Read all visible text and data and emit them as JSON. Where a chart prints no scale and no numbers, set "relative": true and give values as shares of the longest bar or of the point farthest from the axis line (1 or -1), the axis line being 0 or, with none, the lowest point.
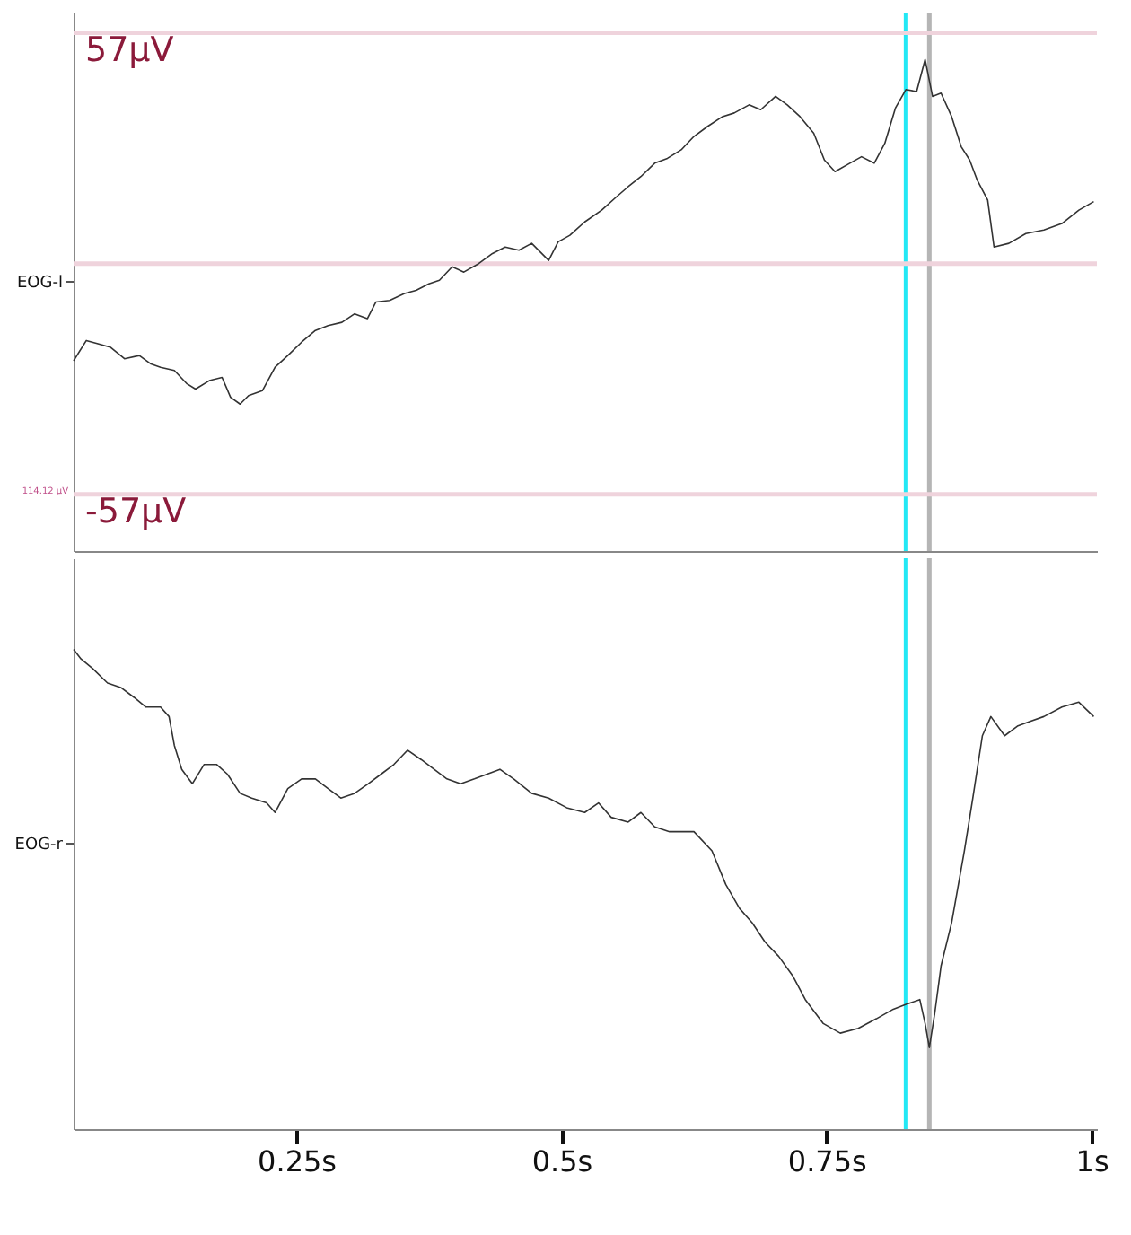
{
  "chart_data": [
    {
      "type": "line",
      "tick_labels": "y",
      "xlim": [
        0.04,
        1.005
      ],
      "ylim": [
        -71,
        62
      ],
      "yticks": [
        {
          "value": 57,
          "label": "57µV"
        },
        {
          "value": -57,
          "label": "-57µV"
        }
      ],
      "grid": false,
      "ref_lines": [
        {
          "axis": "y",
          "value": 57,
          "color": "#efd3dc"
        },
        {
          "axis": "y",
          "value": 0,
          "color": "#efd3dc"
        },
        {
          "axis": "y",
          "value": -57,
          "color": "#efd3dc"
        },
        {
          "axis": "x",
          "value": 0.825,
          "color": "#22e8f5"
        },
        {
          "axis": "x",
          "value": 0.847,
          "color": "#b5b5b5"
        }
      ],
      "annotations": [
        "EOG-l",
        "114.12 µV"
      ],
      "series": [
        {
          "color": "#333333",
          "x": [
            0.04,
            0.052,
            0.063,
            0.075,
            0.088,
            0.102,
            0.113,
            0.122,
            0.135,
            0.147,
            0.155,
            0.168,
            0.18,
            0.188,
            0.197,
            0.205,
            0.218,
            0.23,
            0.242,
            0.255,
            0.268,
            0.28,
            0.293,
            0.305,
            0.317,
            0.325,
            0.338,
            0.352,
            0.363,
            0.375,
            0.385,
            0.397,
            0.408,
            0.422,
            0.435,
            0.447,
            0.46,
            0.472,
            0.488,
            0.497,
            0.508,
            0.522,
            0.538,
            0.552,
            0.563,
            0.575,
            0.588,
            0.6,
            0.613,
            0.625,
            0.638,
            0.652,
            0.663,
            0.677,
            0.688,
            0.702,
            0.713,
            0.725,
            0.738,
            0.748,
            0.758,
            0.772,
            0.783,
            0.795,
            0.805,
            0.815,
            0.825,
            0.835,
            0.843,
            0.85,
            0.858,
            0.868,
            0.877,
            0.885,
            0.892,
            0.902,
            0.908,
            0.922,
            0.938,
            0.955,
            0.972,
            0.988,
            1.002
          ],
          "values": [
            -24,
            -19,
            -19.8,
            -20.7,
            -23.5,
            -22.7,
            -24.8,
            -25.6,
            -26.4,
            -29.7,
            -31,
            -28.9,
            -28.1,
            -33,
            -34.7,
            -32.6,
            -31.4,
            -25.6,
            -22.7,
            -19.4,
            -16.5,
            -15.3,
            -14.5,
            -12.4,
            -13.6,
            -9.5,
            -9.1,
            -7.4,
            -6.6,
            -5,
            -4.1,
            -0.8,
            -2.1,
            0,
            2.5,
            4.1,
            3.3,
            5,
            0.8,
            5.4,
            7,
            10.3,
            13.2,
            16.5,
            19,
            21.5,
            24.8,
            26,
            28.1,
            31.4,
            33.9,
            36.3,
            37.2,
            39.2,
            38,
            41.3,
            39.2,
            36.3,
            32.2,
            25.6,
            22.7,
            24.8,
            26.4,
            24.8,
            29.7,
            38.4,
            43,
            42.5,
            50.4,
            41.3,
            42.1,
            36.3,
            28.9,
            25.6,
            20.7,
            15.7,
            4.1,
            5,
            7.4,
            8.3,
            9.9,
            13.2,
            15.3
          ]
        }
      ]
    },
    {
      "type": "line",
      "relative": true,
      "tick_labels": "x",
      "xlim": [
        0.04,
        1.005
      ],
      "xticks": [
        {
          "value": 0.25,
          "label": "0.25s"
        },
        {
          "value": 0.5,
          "label": "0.5s"
        },
        {
          "value": 0.75,
          "label": "0.75s"
        },
        {
          "value": 1,
          "label": "1s"
        }
      ],
      "grid": false,
      "annotations": [
        "EOG-r"
      ],
      "ref_lines": [
        {
          "axis": "x",
          "value": 0.825,
          "color": "#22e8f5"
        },
        {
          "axis": "x",
          "value": 0.847,
          "color": "#b5b5b5"
        }
      ],
      "series": [
        {
          "color": "#333333",
          "x": [
            0.04,
            0.047,
            0.058,
            0.072,
            0.085,
            0.097,
            0.108,
            0.122,
            0.13,
            0.135,
            0.142,
            0.152,
            0.163,
            0.175,
            0.185,
            0.197,
            0.208,
            0.222,
            0.23,
            0.242,
            0.255,
            0.268,
            0.28,
            0.292,
            0.305,
            0.318,
            0.33,
            0.342,
            0.355,
            0.368,
            0.38,
            0.392,
            0.405,
            0.418,
            0.43,
            0.442,
            0.455,
            0.472,
            0.488,
            0.505,
            0.522,
            0.535,
            0.547,
            0.563,
            0.575,
            0.588,
            0.602,
            0.613,
            0.625,
            0.642,
            0.655,
            0.668,
            0.68,
            0.692,
            0.705,
            0.718,
            0.73,
            0.747,
            0.763,
            0.78,
            0.797,
            0.813,
            0.825,
            0.838,
            0.843,
            0.847,
            0.852,
            0.858,
            0.868,
            0.88,
            0.888,
            0.897,
            0.905,
            0.918,
            0.93,
            0.942,
            0.955,
            0.972,
            0.988,
            1.002
          ],
          "values": [
            1.0,
            0.98,
            0.96,
            0.93,
            0.92,
            0.9,
            0.88,
            0.88,
            0.86,
            0.8,
            0.75,
            0.72,
            0.76,
            0.76,
            0.74,
            0.7,
            0.69,
            0.68,
            0.66,
            0.71,
            0.73,
            0.73,
            0.71,
            0.69,
            0.7,
            0.72,
            0.74,
            0.76,
            0.79,
            0.77,
            0.75,
            0.73,
            0.72,
            0.73,
            0.74,
            0.75,
            0.73,
            0.7,
            0.69,
            0.67,
            0.66,
            0.68,
            0.65,
            0.64,
            0.66,
            0.63,
            0.62,
            0.62,
            0.62,
            0.58,
            0.51,
            0.46,
            0.43,
            0.39,
            0.36,
            0.32,
            0.27,
            0.22,
            0.2,
            0.21,
            0.23,
            0.25,
            0.26,
            0.27,
            0.22,
            0.17,
            0.24,
            0.34,
            0.43,
            0.58,
            0.69,
            0.82,
            0.86,
            0.82,
            0.84,
            0.85,
            0.86,
            0.88,
            0.89,
            0.86
          ]
        }
      ]
    }
  ]
}
